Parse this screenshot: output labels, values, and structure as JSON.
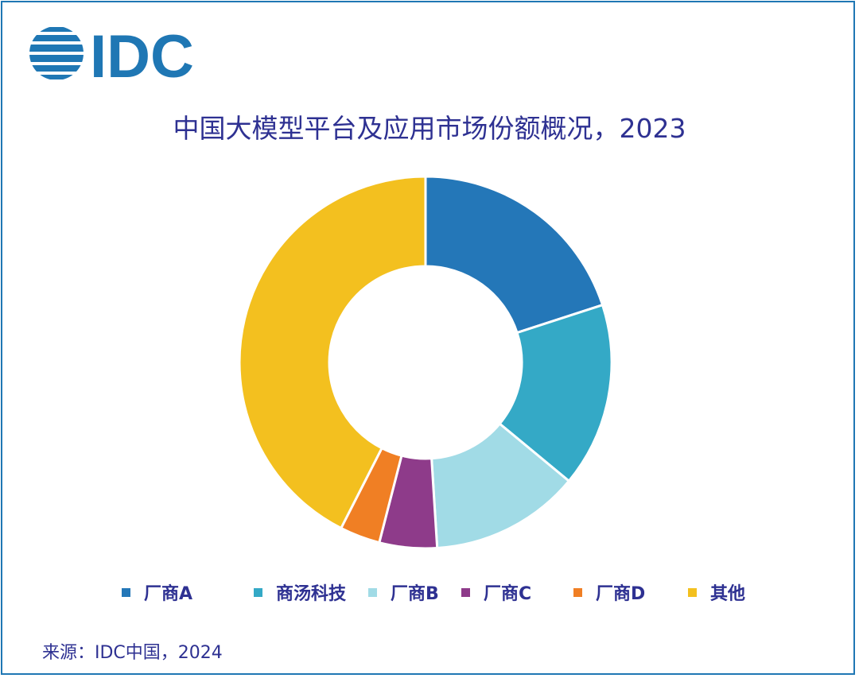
{
  "brand": {
    "logo_text": "IDC",
    "color": "#1f77b4"
  },
  "chart_data": {
    "type": "pie",
    "subtype": "donut",
    "title": "中国大模型平台及应用市场份额概况，2023",
    "series": [
      {
        "name": "厂商A",
        "value": 20.0,
        "color": "#2477b8"
      },
      {
        "name": "商汤科技",
        "value": 16.0,
        "color": "#34a9c6"
      },
      {
        "name": "厂商B",
        "value": 13.0,
        "color": "#a1dbe6"
      },
      {
        "name": "厂商C",
        "value": 5.0,
        "color": "#8e3b8a"
      },
      {
        "name": "厂商D",
        "value": 3.5,
        "color": "#f07f24"
      },
      {
        "name": "其他",
        "value": 42.5,
        "color": "#f3c01f"
      }
    ],
    "legend_position": "bottom",
    "unit": "%"
  },
  "source": "来源：IDC中国，2024"
}
